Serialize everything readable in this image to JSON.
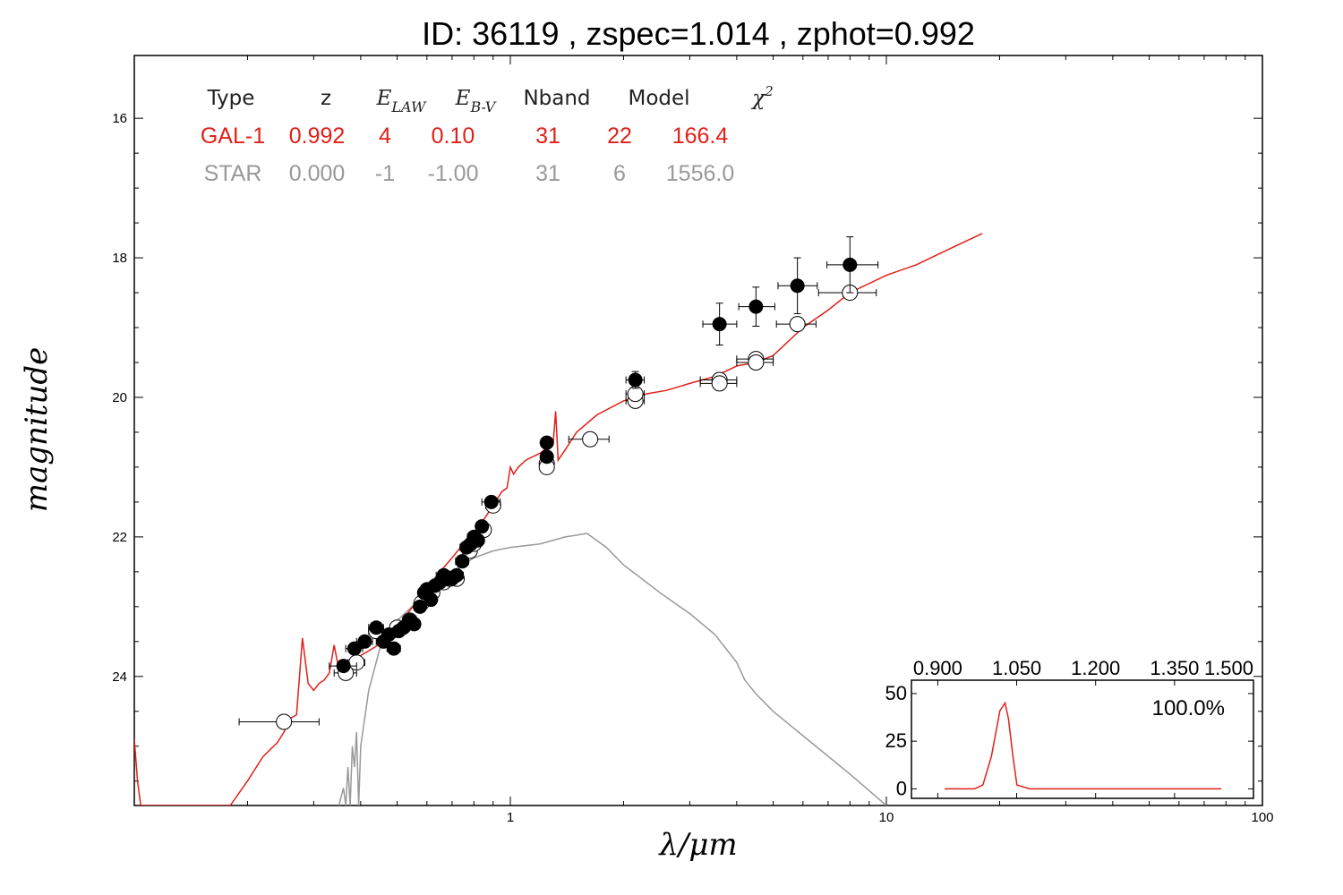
{
  "title": "ID:  36119 , zspec=1.014 , zphot=0.992",
  "colors": {
    "galaxy": "#e0201a",
    "star": "#999999",
    "points": "#000000"
  },
  "table": {
    "headers": [
      "Type",
      "z",
      "E_LAW",
      "E_B-V",
      "Nband",
      "Model",
      "χ2"
    ],
    "rows": [
      {
        "name": "galaxy-row",
        "color": "#e0201a",
        "cells": [
          "GAL-1",
          "0.992",
          "4",
          "0.10",
          "31",
          "22",
          "166.4"
        ]
      },
      {
        "name": "star-row",
        "color": "#999999",
        "cells": [
          "STAR",
          "0.000",
          "-1",
          "-1.00",
          "31",
          "6",
          "1556.0"
        ]
      }
    ]
  },
  "chart_data": [
    {
      "type": "scatter",
      "xlabel": "λ/μm",
      "ylabel": "magnitude",
      "xscale": "log",
      "xlim": [
        0.1,
        100
      ],
      "ylim": [
        25.85,
        15.1
      ],
      "y_inverted": true,
      "x_tick_labels": [
        "1",
        "10",
        "100"
      ],
      "y_tick_labels": [
        "16",
        "18",
        "20",
        "22",
        "24"
      ],
      "grid": false,
      "series": [
        {
          "role": "observed",
          "marker": "filled-circle",
          "x": [
            0.36,
            0.385,
            0.41,
            0.44,
            0.46,
            0.475,
            0.49,
            0.505,
            0.52,
            0.54,
            0.555,
            0.575,
            0.59,
            0.6,
            0.615,
            0.63,
            0.65,
            0.665,
            0.68,
            0.7,
            0.72,
            0.745,
            0.765,
            0.785,
            0.8,
            0.82,
            0.84,
            0.89,
            1.25,
            1.25,
            2.15
          ],
          "y": [
            23.85,
            23.6,
            23.5,
            23.3,
            23.5,
            23.4,
            23.6,
            23.35,
            23.3,
            23.2,
            23.25,
            23.0,
            22.8,
            22.75,
            22.9,
            22.7,
            22.65,
            22.55,
            22.6,
            22.6,
            22.55,
            22.35,
            22.15,
            22.1,
            22.0,
            22.05,
            21.85,
            21.5,
            20.65,
            20.85,
            19.75
          ],
          "xerr": [
            0.03,
            0.02,
            0.02,
            0.02,
            0.02,
            0.02,
            0.02,
            0.02,
            0.02,
            0.02,
            0.02,
            0.02,
            0.02,
            0.02,
            0.02,
            0.02,
            0.03,
            0.03,
            0.03,
            0.03,
            0.03,
            0.03,
            0.03,
            0.03,
            0.03,
            0.03,
            0.03,
            0.05,
            0.0,
            0.0,
            0.12
          ],
          "yerr": [
            0,
            0,
            0,
            0,
            0,
            0,
            0,
            0,
            0,
            0,
            0,
            0,
            0,
            0,
            0,
            0,
            0,
            0,
            0,
            0,
            0,
            0,
            0,
            0,
            0,
            0,
            0,
            0,
            0,
            0,
            0.12
          ]
        },
        {
          "role": "observed-irac",
          "marker": "filled-circle-errorbar",
          "x": [
            3.6,
            4.5,
            5.8,
            8.0
          ],
          "y": [
            18.95,
            18.7,
            18.4,
            18.1
          ],
          "xerr_lo": [
            0.35,
            0.45,
            0.65,
            1.05
          ],
          "xerr_hi": [
            0.4,
            0.55,
            0.75,
            1.5
          ],
          "yerr": [
            0.3,
            0.28,
            0.4,
            0.4
          ]
        },
        {
          "role": "model-magnitudes",
          "marker": "open-circle",
          "x": [
            0.25,
            0.365,
            0.39,
            0.44,
            0.5,
            0.54,
            0.58,
            0.62,
            0.665,
            0.69,
            0.72,
            0.78,
            0.8,
            0.85,
            0.9,
            1.25,
            1.25,
            1.63,
            2.15,
            2.15,
            3.6,
            3.6,
            4.5,
            4.5,
            5.8,
            8.0
          ],
          "y": [
            24.65,
            23.95,
            23.8,
            23.35,
            23.3,
            23.2,
            22.95,
            22.8,
            22.65,
            22.6,
            22.6,
            22.2,
            22.1,
            21.9,
            21.55,
            20.95,
            21.0,
            20.6,
            20.05,
            19.95,
            19.75,
            19.8,
            19.45,
            19.5,
            18.95,
            18.5
          ],
          "xerr": [
            0.06,
            0.025,
            0.02,
            0.02,
            0.02,
            0.02,
            0.02,
            0.02,
            0.02,
            0.02,
            0.03,
            0.03,
            0.03,
            0.03,
            0.04,
            0.0,
            0.0,
            0.2,
            0.12,
            0.12,
            0.4,
            0.4,
            0.5,
            0.5,
            0.7,
            1.4
          ]
        },
        {
          "role": "galaxy-template",
          "line": true,
          "x": [
            0.1,
            0.102,
            0.104,
            0.12,
            0.18,
            0.2,
            0.22,
            0.24,
            0.25,
            0.26,
            0.27,
            0.28,
            0.29,
            0.3,
            0.31,
            0.32,
            0.33,
            0.34,
            0.35,
            0.37,
            0.4,
            0.43,
            0.46,
            0.5,
            0.55,
            0.6,
            0.65,
            0.7,
            0.75,
            0.8,
            0.85,
            0.9,
            0.95,
            0.98,
            1.0,
            1.02,
            1.05,
            1.1,
            1.2,
            1.3,
            1.32,
            1.34,
            1.4,
            1.5,
            1.7,
            2.0,
            2.3,
            2.6,
            3.0,
            3.5,
            4.0,
            4.5,
            5.0,
            6.0,
            7.0,
            8.0,
            10.0,
            12.0,
            15.0,
            18.0
          ],
          "y": [
            24.9,
            25.5,
            25.85,
            25.85,
            25.85,
            25.5,
            25.15,
            24.95,
            24.8,
            24.6,
            24.55,
            23.45,
            24.1,
            24.2,
            24.1,
            24.05,
            23.95,
            23.55,
            23.9,
            23.8,
            23.7,
            23.6,
            23.5,
            23.3,
            23.0,
            22.75,
            22.5,
            22.3,
            22.1,
            21.95,
            21.75,
            21.55,
            21.35,
            21.3,
            21.0,
            21.1,
            21.0,
            20.9,
            20.8,
            20.65,
            20.2,
            20.9,
            20.75,
            20.5,
            20.25,
            20.05,
            19.95,
            19.9,
            19.8,
            19.7,
            19.55,
            19.5,
            19.4,
            19.0,
            18.75,
            18.5,
            18.25,
            18.1,
            17.85,
            17.65
          ]
        },
        {
          "role": "star-template",
          "line": true,
          "x": [
            0.35,
            0.36,
            0.365,
            0.37,
            0.375,
            0.38,
            0.385,
            0.39,
            0.395,
            0.4,
            0.42,
            0.45,
            0.5,
            0.6,
            0.7,
            0.8,
            0.9,
            1.0,
            1.2,
            1.4,
            1.6,
            1.8,
            2.0,
            2.5,
            3.0,
            3.5,
            4.0,
            4.2,
            4.5,
            5.0,
            6.0,
            8.0,
            10.0
          ],
          "y": [
            25.85,
            25.6,
            25.85,
            25.3,
            25.85,
            25.0,
            25.3,
            24.8,
            25.85,
            25.0,
            24.2,
            23.6,
            23.2,
            22.8,
            22.5,
            22.3,
            22.2,
            22.15,
            22.1,
            22.0,
            21.95,
            22.15,
            22.4,
            22.8,
            23.1,
            23.4,
            23.8,
            24.05,
            24.25,
            24.5,
            24.85,
            25.4,
            25.85
          ]
        }
      ]
    },
    {
      "type": "line",
      "name": "photo-z probability inset",
      "xlim": [
        0.85,
        1.5
      ],
      "ylim": [
        -5,
        57
      ],
      "x_tick_labels": [
        "0.900",
        "1.050",
        "1.200",
        "1.350",
        "1.500"
      ],
      "y_tick_labels": [
        "0",
        "25",
        "50"
      ],
      "annotation": "100.0%",
      "x": [
        0.85,
        0.9,
        0.92,
        0.94,
        0.96,
        0.98,
        0.992,
        1.0,
        1.01,
        1.02,
        1.05,
        1.1,
        1.2,
        1.3,
        1.4,
        1.5
      ],
      "y": [
        0,
        0,
        0,
        2,
        17,
        41,
        45,
        37,
        18,
        2,
        0,
        0,
        0,
        0,
        0,
        0
      ]
    }
  ]
}
